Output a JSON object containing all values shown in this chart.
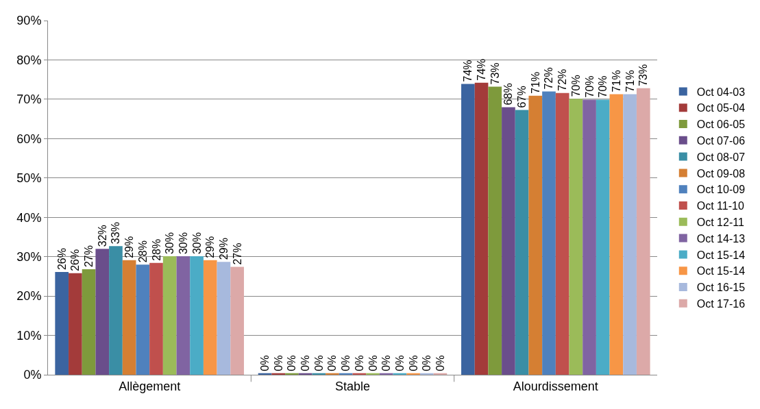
{
  "chart_data": {
    "type": "bar",
    "categories": [
      "Allègement",
      "Stable",
      "Alourdissement"
    ],
    "ylim": [
      0,
      90
    ],
    "yticks": [
      {
        "value": 0,
        "label": "0%"
      },
      {
        "value": 10,
        "label": "10%"
      },
      {
        "value": 20,
        "label": "20%"
      },
      {
        "value": 30,
        "label": "30%"
      },
      {
        "value": 40,
        "label": "40%"
      },
      {
        "value": 50,
        "label": "50%"
      },
      {
        "value": 60,
        "label": "60%"
      },
      {
        "value": 70,
        "label": "70%"
      },
      {
        "value": 80,
        "label": "80%"
      },
      {
        "value": 90,
        "label": "90%"
      }
    ],
    "grid": "y",
    "legend": "right",
    "series": [
      {
        "name": "Oct 04-03",
        "color": "#3b64a0",
        "values": [
          26.1,
          0.4,
          73.9
        ],
        "value_labels": [
          "26%",
          "0%",
          "74%"
        ]
      },
      {
        "name": "Oct 05-04",
        "color": "#a33b3a",
        "values": [
          25.8,
          0.4,
          74.2
        ],
        "value_labels": [
          "26%",
          "0%",
          "74%"
        ]
      },
      {
        "name": "Oct 06-05",
        "color": "#7e9a3c",
        "values": [
          26.8,
          0.4,
          73.2
        ],
        "value_labels": [
          "27%",
          "0%",
          "73%"
        ]
      },
      {
        "name": "Oct 07-06",
        "color": "#6a4e8b",
        "values": [
          32.0,
          0.4,
          68.0
        ],
        "value_labels": [
          "32%",
          "0%",
          "68%"
        ]
      },
      {
        "name": "Oct 08-07",
        "color": "#3a8ea5",
        "values": [
          32.7,
          0.4,
          67.3
        ],
        "value_labels": [
          "33%",
          "0%",
          "67%"
        ]
      },
      {
        "name": "Oct 09-08",
        "color": "#d57f33",
        "values": [
          29.1,
          0.4,
          70.9
        ],
        "value_labels": [
          "29%",
          "0%",
          "71%"
        ]
      },
      {
        "name": "Oct 10-09",
        "color": "#4f81bd",
        "values": [
          28.0,
          0.4,
          72.0
        ],
        "value_labels": [
          "28%",
          "0%",
          "72%"
        ]
      },
      {
        "name": "Oct 11-10",
        "color": "#c0504d",
        "values": [
          28.4,
          0.4,
          71.6
        ],
        "value_labels": [
          "28%",
          "0%",
          "72%"
        ]
      },
      {
        "name": "Oct 12-11",
        "color": "#9bbb59",
        "values": [
          30.1,
          0.4,
          70.1
        ],
        "value_labels": [
          "30%",
          "0%",
          "70%"
        ]
      },
      {
        "name": "Oct 14-13",
        "color": "#8064a2",
        "values": [
          30.1,
          0.4,
          69.9
        ],
        "value_labels": [
          "30%",
          "0%",
          "70%"
        ]
      },
      {
        "name": "Oct 15-14",
        "color": "#4bacc6",
        "values": [
          30.1,
          0.4,
          69.9
        ],
        "value_labels": [
          "30%",
          "0%",
          "70%"
        ]
      },
      {
        "name": "Oct 15-14",
        "color": "#f79646",
        "values": [
          29.1,
          0.4,
          71.3
        ],
        "value_labels": [
          "29%",
          "0%",
          "71%"
        ]
      },
      {
        "name": "Oct 16-15",
        "color": "#a7b9dd",
        "values": [
          28.7,
          0.4,
          71.3
        ],
        "value_labels": [
          "29%",
          "0%",
          "71%"
        ]
      },
      {
        "name": "Oct 17-16",
        "color": "#dca9a8",
        "values": [
          27.4,
          0.4,
          72.8
        ],
        "value_labels": [
          "27%",
          "0%",
          "73%"
        ]
      }
    ]
  }
}
